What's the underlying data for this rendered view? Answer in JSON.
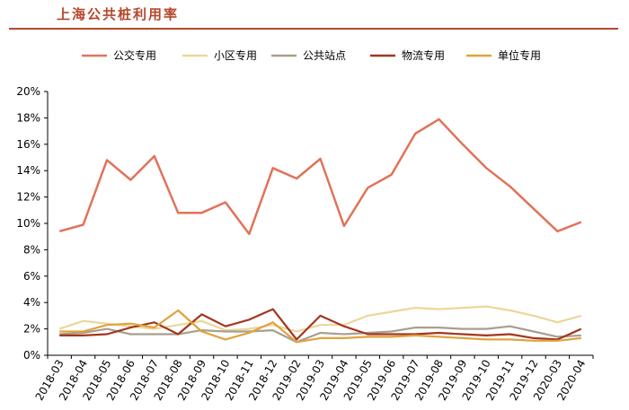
{
  "chart_data": {
    "type": "line",
    "title": "上海公共桩利用率",
    "xlabel": "",
    "ylabel": "",
    "ylim": [
      0,
      20
    ],
    "y_ticks": [
      "0%",
      "2%",
      "4%",
      "6%",
      "8%",
      "10%",
      "12%",
      "14%",
      "16%",
      "18%",
      "20%"
    ],
    "grid": false,
    "legend_position": "top",
    "categories": [
      "2018-03",
      "2018-04",
      "2018-05",
      "2018-06",
      "2018-07",
      "2018-08",
      "2018-09",
      "2018-10",
      "2018-11",
      "2018-12",
      "2019-02",
      "2019-03",
      "2019-04",
      "2019-05",
      "2019-06",
      "2019-07",
      "2019-08",
      "2019-09",
      "2019-10",
      "2019-11",
      "2019-12",
      "2020-03",
      "2020-04"
    ],
    "series": [
      {
        "name": "公交专用",
        "color": "#e0735a",
        "values": [
          9.4,
          9.9,
          14.8,
          13.3,
          15.1,
          10.8,
          10.8,
          11.6,
          9.2,
          14.2,
          13.4,
          14.9,
          9.8,
          12.7,
          13.7,
          16.8,
          17.9,
          16.0,
          14.2,
          12.8,
          11.1,
          9.4,
          10.1
        ]
      },
      {
        "name": "小区专用",
        "color": "#ead79a",
        "values": [
          2.0,
          2.6,
          2.4,
          2.2,
          2.0,
          2.3,
          2.6,
          1.9,
          2.0,
          2.3,
          1.8,
          2.3,
          2.3,
          3.0,
          3.3,
          3.6,
          3.5,
          3.6,
          3.7,
          3.4,
          3.0,
          2.5,
          3.0
        ]
      },
      {
        "name": "公共站点",
        "color": "#a89f8e",
        "values": [
          1.6,
          1.7,
          2.0,
          1.6,
          1.6,
          1.6,
          1.9,
          1.8,
          1.8,
          1.9,
          1.0,
          1.7,
          1.6,
          1.7,
          1.8,
          2.1,
          2.1,
          2.0,
          2.0,
          2.2,
          1.8,
          1.4,
          1.5
        ]
      },
      {
        "name": "物流专用",
        "color": "#a3361e",
        "values": [
          1.5,
          1.5,
          1.6,
          2.1,
          2.5,
          1.6,
          3.1,
          2.2,
          2.7,
          3.5,
          1.2,
          3.0,
          2.2,
          1.6,
          1.6,
          1.6,
          1.7,
          1.6,
          1.5,
          1.6,
          1.3,
          1.2,
          2.0
        ]
      },
      {
        "name": "单位专用",
        "color": "#e0a23c",
        "values": [
          1.8,
          1.8,
          2.3,
          2.4,
          2.1,
          3.4,
          1.8,
          1.2,
          1.7,
          2.5,
          1.0,
          1.3,
          1.3,
          1.4,
          1.4,
          1.5,
          1.4,
          1.3,
          1.2,
          1.2,
          1.1,
          1.1,
          1.3
        ]
      }
    ]
  }
}
